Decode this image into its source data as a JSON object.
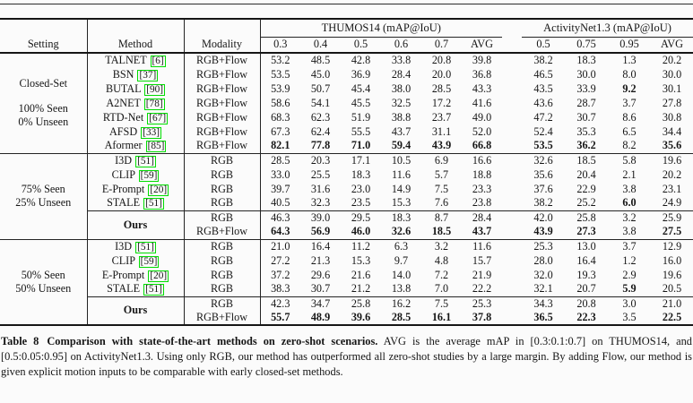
{
  "page": {
    "background": "#fbfbfb",
    "text_color": "#161616",
    "rule_color": "#242424",
    "citation_box_color": "#00dc00"
  },
  "table": {
    "group_headers": [
      {
        "label": "THUMOS14 (mAP@IoU)",
        "span": 6
      },
      {
        "label": "ActivityNet1.3 (mAP@IoU)",
        "span": 4
      }
    ],
    "column_headers": [
      "Setting",
      "Method",
      "Modality",
      "0.3",
      "0.4",
      "0.5",
      "0.6",
      "0.7",
      "AVG",
      "0.5",
      "0.75",
      "0.95",
      "AVG"
    ],
    "blocks": [
      {
        "setting": {
          "primary": "Closed-Set",
          "secondary": [
            "100% Seen",
            "0% Unseen"
          ]
        },
        "rows": [
          {
            "method": "TALNET",
            "cite": "6",
            "modality": "RGB+Flow",
            "values": [
              "53.2",
              "48.5",
              "42.8",
              "33.8",
              "20.8",
              "39.8",
              "38.2",
              "18.3",
              "1.3",
              "20.2"
            ],
            "bold": []
          },
          {
            "method": "BSN",
            "cite": "37",
            "modality": "RGB+Flow",
            "values": [
              "53.5",
              "45.0",
              "36.9",
              "28.4",
              "20.0",
              "36.8",
              "46.5",
              "30.0",
              "8.0",
              "30.0"
            ],
            "bold": []
          },
          {
            "method": "BUTAL",
            "cite": "90",
            "modality": "RGB+Flow",
            "values": [
              "53.9",
              "50.7",
              "45.4",
              "38.0",
              "28.5",
              "43.3",
              "43.5",
              "33.9",
              "9.2",
              "30.1"
            ],
            "bold": [
              8
            ]
          },
          {
            "method": "A2NET",
            "cite": "78",
            "modality": "RGB+Flow",
            "values": [
              "58.6",
              "54.1",
              "45.5",
              "32.5",
              "17.2",
              "41.6",
              "43.6",
              "28.7",
              "3.7",
              "27.8"
            ],
            "bold": []
          },
          {
            "method": "RTD-Net",
            "cite": "67",
            "modality": "RGB+Flow",
            "values": [
              "68.3",
              "62.3",
              "51.9",
              "38.8",
              "23.7",
              "49.0",
              "47.2",
              "30.7",
              "8.6",
              "30.8"
            ],
            "bold": []
          },
          {
            "method": "AFSD",
            "cite": "33",
            "modality": "RGB+Flow",
            "values": [
              "67.3",
              "62.4",
              "55.5",
              "43.7",
              "31.1",
              "52.0",
              "52.4",
              "35.3",
              "6.5",
              "34.4"
            ],
            "bold": []
          },
          {
            "method": "Aformer",
            "cite": "85",
            "modality": "RGB+Flow",
            "values": [
              "82.1",
              "77.8",
              "71.0",
              "59.4",
              "43.9",
              "66.8",
              "53.5",
              "36.2",
              "8.2",
              "35.6"
            ],
            "bold": [
              0,
              1,
              2,
              3,
              4,
              5,
              6,
              7,
              9
            ]
          }
        ],
        "ours": null
      },
      {
        "setting": {
          "primary": null,
          "secondary": [
            "75% Seen",
            "25% Unseen"
          ]
        },
        "rows": [
          {
            "method": "I3D",
            "cite": "51",
            "modality": "RGB",
            "values": [
              "28.5",
              "20.3",
              "17.1",
              "10.5",
              "6.9",
              "16.6",
              "32.6",
              "18.5",
              "5.8",
              "19.6"
            ],
            "bold": []
          },
          {
            "method": "CLIP",
            "cite": "59",
            "modality": "RGB",
            "values": [
              "33.0",
              "25.5",
              "18.3",
              "11.6",
              "5.7",
              "18.8",
              "35.6",
              "20.4",
              "2.1",
              "20.2"
            ],
            "bold": []
          },
          {
            "method": "E-Prompt",
            "cite": "20",
            "modality": "RGB",
            "values": [
              "39.7",
              "31.6",
              "23.0",
              "14.9",
              "7.5",
              "23.3",
              "37.6",
              "22.9",
              "3.8",
              "23.1"
            ],
            "bold": []
          },
          {
            "method": "STALE",
            "cite": "51",
            "modality": "RGB",
            "values": [
              "40.5",
              "32.3",
              "23.5",
              "15.3",
              "7.6",
              "23.8",
              "38.2",
              "25.2",
              "6.0",
              "24.9"
            ],
            "bold": [
              8
            ]
          }
        ],
        "ours": {
          "label": "Ours",
          "rows": [
            {
              "modality": "RGB",
              "values": [
                "46.3",
                "39.0",
                "29.5",
                "18.3",
                "8.7",
                "28.4",
                "42.0",
                "25.8",
                "3.2",
                "25.9"
              ],
              "bold": []
            },
            {
              "modality": "RGB+Flow",
              "values": [
                "64.3",
                "56.9",
                "46.0",
                "32.6",
                "18.5",
                "43.7",
                "43.9",
                "27.3",
                "3.8",
                "27.5"
              ],
              "bold": [
                0,
                1,
                2,
                3,
                4,
                5,
                6,
                7,
                9
              ]
            }
          ]
        }
      },
      {
        "setting": {
          "primary": null,
          "secondary": [
            "50% Seen",
            "50% Unseen"
          ]
        },
        "rows": [
          {
            "method": "I3D",
            "cite": "51",
            "modality": "RGB",
            "values": [
              "21.0",
              "16.4",
              "11.2",
              "6.3",
              "3.2",
              "11.6",
              "25.3",
              "13.0",
              "3.7",
              "12.9"
            ],
            "bold": []
          },
          {
            "method": "CLIP",
            "cite": "59",
            "modality": "RGB",
            "values": [
              "27.2",
              "21.3",
              "15.3",
              "9.7",
              "4.8",
              "15.7",
              "28.0",
              "16.4",
              "1.2",
              "16.0"
            ],
            "bold": []
          },
          {
            "method": "E-Prompt",
            "cite": "20",
            "modality": "RGB",
            "values": [
              "37.2",
              "29.6",
              "21.6",
              "14.0",
              "7.2",
              "21.9",
              "32.0",
              "19.3",
              "2.9",
              "19.6"
            ],
            "bold": []
          },
          {
            "method": "STALE",
            "cite": "51",
            "modality": "RGB",
            "values": [
              "38.3",
              "30.7",
              "21.2",
              "13.8",
              "7.0",
              "22.2",
              "32.1",
              "20.7",
              "5.9",
              "20.5"
            ],
            "bold": [
              8
            ]
          }
        ],
        "ours": {
          "label": "Ours",
          "rows": [
            {
              "modality": "RGB",
              "values": [
                "42.3",
                "34.7",
                "25.8",
                "16.2",
                "7.5",
                "25.3",
                "34.3",
                "20.8",
                "3.0",
                "21.0"
              ],
              "bold": []
            },
            {
              "modality": "RGB+Flow",
              "values": [
                "55.7",
                "48.9",
                "39.6",
                "28.5",
                "16.1",
                "37.8",
                "36.5",
                "22.3",
                "3.5",
                "22.5"
              ],
              "bold": [
                0,
                1,
                2,
                3,
                4,
                5,
                6,
                7,
                9
              ]
            }
          ]
        }
      }
    ]
  },
  "caption": {
    "label": "Table 8",
    "title_bold": "Comparison with state-of-the-art methods on zero-shot scenarios.",
    "body": "AVG is the average mAP in [0.3:0.1:0.7] on THUMOS14, and [0.5:0.05:0.95] on ActivityNet1.3. Using only RGB, our method has outperformed all zero-shot studies by a large margin. By adding Flow, our method is given explicit motion inputs to be comparable with early closed-set methods."
  }
}
